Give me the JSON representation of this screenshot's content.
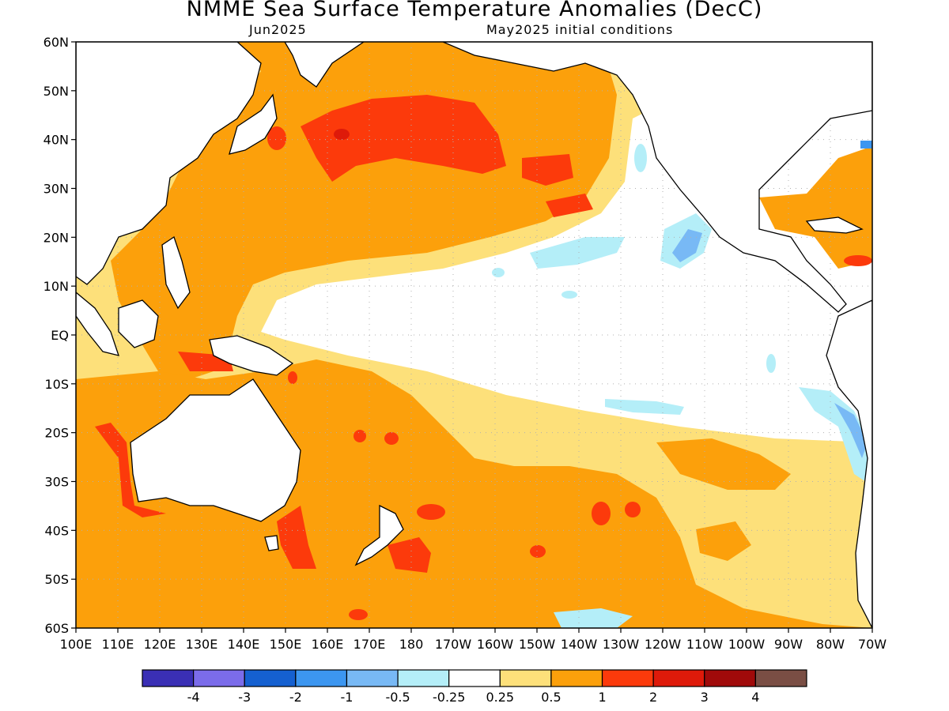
{
  "title": "NMME Sea Surface Temperature Anomalies (DecC)",
  "subtitle_left": "Jun2025",
  "subtitle_right": "May2025 initial conditions",
  "lat_ticks": [
    "60N",
    "50N",
    "40N",
    "30N",
    "20N",
    "10N",
    "EQ",
    "10S",
    "20S",
    "30S",
    "40S",
    "50S",
    "60S"
  ],
  "lon_ticks": [
    "100E",
    "110E",
    "120E",
    "130E",
    "140E",
    "150E",
    "160E",
    "170E",
    "180",
    "170W",
    "160W",
    "150W",
    "140W",
    "130W",
    "120W",
    "110W",
    "100W",
    "90W",
    "80W",
    "70W"
  ],
  "colorbar": {
    "colors": [
      "#3a2fb5",
      "#7b6cea",
      "#1560d0",
      "#3c96f0",
      "#78b9f5",
      "#b4eef8",
      "#ffffff",
      "#fde07a",
      "#fca00b",
      "#fc3a0b",
      "#de1a0a",
      "#a00a0a",
      "#7a4e44"
    ],
    "labels": [
      "-4",
      "-3",
      "-2",
      "-1",
      "-0.5",
      "-0.25",
      "0.25",
      "0.5",
      "1",
      "2",
      "3",
      "4"
    ]
  },
  "colors": {
    "land": "#ffffff",
    "coast": "#000000",
    "grid": "#b0b0b0"
  }
}
